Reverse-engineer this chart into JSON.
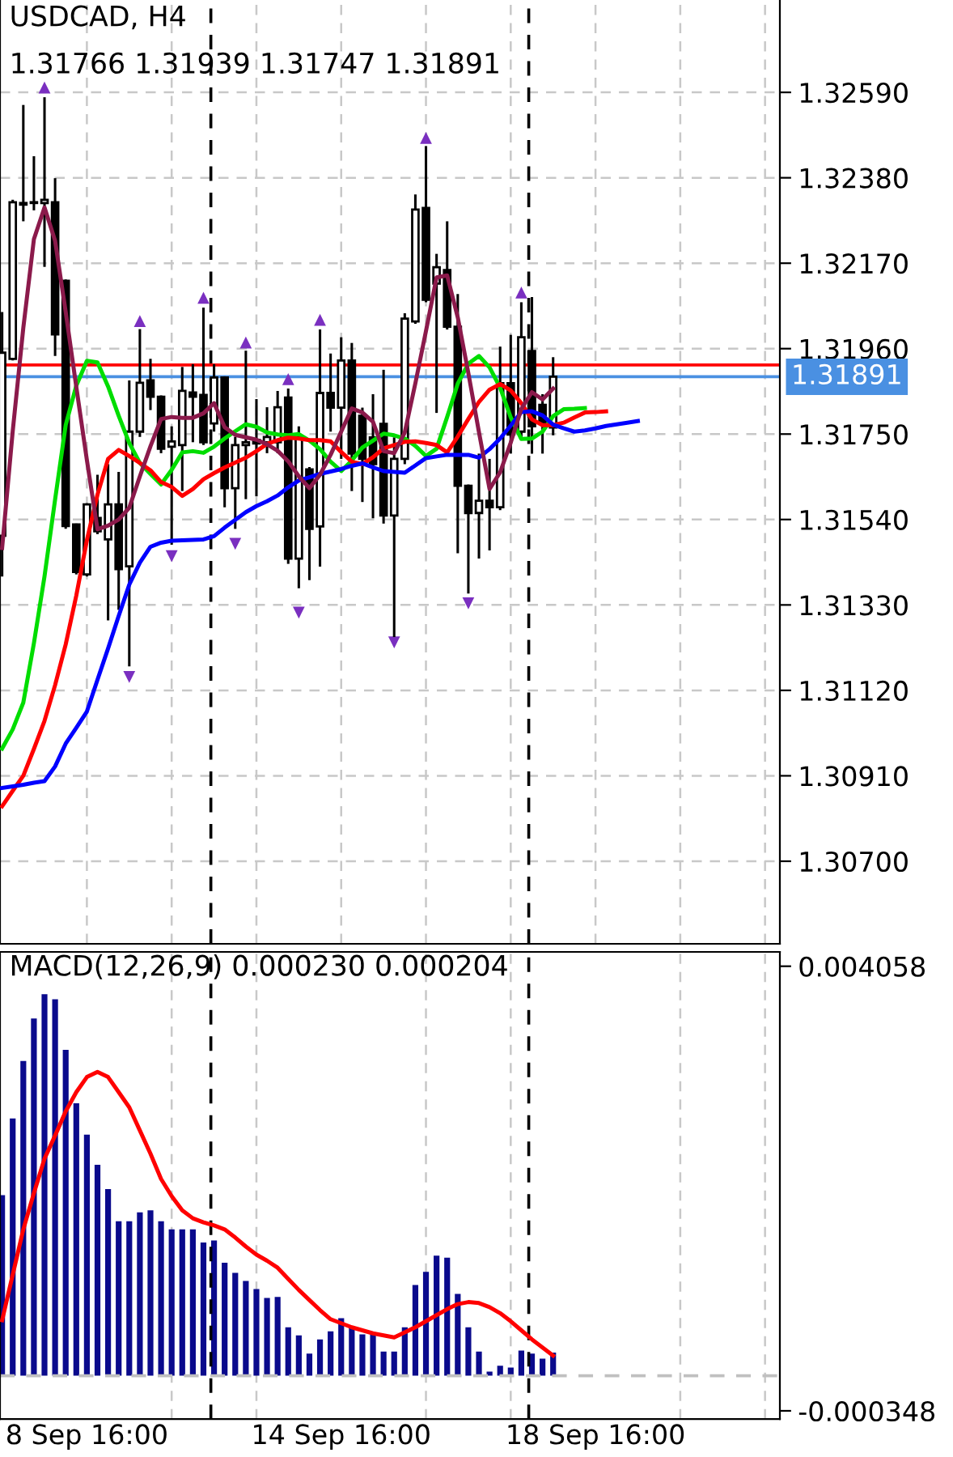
{
  "chart_data": [
    {
      "type": "candlestick",
      "title": "USDCAD, H4",
      "subtitle": "1.31766 1.31939 1.31747 1.31891",
      "categories": [
        null,
        null,
        null,
        null,
        null,
        null,
        null,
        null,
        null,
        null,
        null,
        null,
        null,
        null,
        null,
        null,
        null,
        null,
        null,
        null,
        null,
        null,
        null,
        null,
        null,
        null,
        null,
        null,
        null,
        null,
        null,
        null,
        null,
        null,
        null,
        null,
        null,
        null,
        null,
        null,
        null,
        null,
        null,
        null,
        null,
        null,
        null,
        null,
        null,
        null,
        null,
        null,
        null,
        null,
        null,
        null,
        null,
        null,
        null,
        null,
        null,
        null,
        null,
        null,
        null,
        null,
        null,
        null,
        null,
        null,
        null,
        null,
        null,
        null
      ],
      "ohlc": [
        [
          1.315,
          1.3205,
          1.314,
          1.3195
        ],
        [
          1.31935,
          1.32326,
          1.31931,
          1.3232
        ],
        [
          1.32318,
          1.32559,
          1.32273,
          1.32314
        ],
        [
          1.3232,
          1.32433,
          1.323,
          1.32318
        ],
        [
          1.32318,
          1.32578,
          1.32161,
          1.32326
        ],
        [
          1.3232,
          1.32379,
          1.31942,
          1.31995
        ],
        [
          1.32127,
          1.3213,
          1.31517,
          1.31524
        ],
        [
          1.31528,
          1.3153,
          1.31405,
          1.31411
        ],
        [
          1.31405,
          1.3158,
          1.314,
          1.31577
        ],
        [
          1.31544,
          1.3165,
          1.31504,
          1.31511
        ],
        [
          1.31491,
          1.31676,
          1.31292,
          1.31577
        ],
        [
          1.31577,
          1.31657,
          1.31318,
          1.31418
        ],
        [
          1.31425,
          1.31882,
          1.31179,
          1.31756
        ],
        [
          1.31756,
          1.32008,
          1.31743,
          1.31876
        ],
        [
          1.31882,
          1.31935,
          1.31809,
          1.31842
        ],
        [
          1.31842,
          1.31845,
          1.31703,
          1.31714
        ],
        [
          1.31719,
          1.31769,
          1.31478,
          1.31732
        ],
        [
          1.31723,
          1.31915,
          1.3161,
          1.31856
        ],
        [
          1.31852,
          1.31922,
          1.3173,
          1.31842
        ],
        [
          1.31846,
          1.32061,
          1.31723,
          1.3173
        ],
        [
          1.31776,
          1.31922,
          1.31756,
          1.31889
        ],
        [
          1.31889,
          1.31892,
          1.3157,
          1.31617
        ],
        [
          1.31617,
          1.31743,
          1.31517,
          1.31723
        ],
        [
          1.31723,
          1.31955,
          1.3159,
          1.3173
        ],
        [
          1.31736,
          1.31836,
          1.31597,
          1.31727
        ],
        [
          1.3173,
          1.31816,
          1.31703,
          1.31743
        ],
        [
          1.3173,
          1.31856,
          1.31703,
          1.31816
        ],
        [
          1.3184,
          1.31862,
          1.31431,
          1.31444
        ],
        [
          1.31444,
          1.31769,
          1.31371,
          1.31742
        ],
        [
          1.31663,
          1.31669,
          1.31391,
          1.31517
        ],
        [
          1.31523,
          1.32007,
          1.31424,
          1.31851
        ],
        [
          1.31851,
          1.31948,
          1.31756,
          1.31815
        ],
        [
          1.31815,
          1.31988,
          1.31689,
          1.31931
        ],
        [
          1.31931,
          1.31974,
          1.3161,
          1.31702
        ],
        [
          1.31795,
          1.31815,
          1.31583,
          1.31689
        ],
        [
          1.31742,
          1.31848,
          1.31543,
          1.31676
        ],
        [
          1.31775,
          1.31908,
          1.3153,
          1.3155
        ],
        [
          1.3155,
          1.31742,
          1.31251,
          1.31689
        ],
        [
          1.31689,
          1.32047,
          1.31676,
          1.32034
        ],
        [
          1.32027,
          1.32339,
          1.32021,
          1.32302
        ],
        [
          1.32306,
          1.32458,
          1.32074,
          1.3208
        ],
        [
          1.3212,
          1.32193,
          1.31802,
          1.3216
        ],
        [
          1.32153,
          1.32273,
          1.32007,
          1.32014
        ],
        [
          1.32014,
          1.32094,
          1.31457,
          1.31623
        ],
        [
          1.31623,
          1.31626,
          1.31358,
          1.31556
        ],
        [
          1.31556,
          1.31702,
          1.31444,
          1.31586
        ],
        [
          1.31586,
          1.31689,
          1.31464,
          1.3157
        ],
        [
          1.3157,
          1.31965,
          1.31563,
          1.31875
        ],
        [
          1.31875,
          1.31994,
          1.31702,
          1.31749
        ],
        [
          1.31756,
          1.32074,
          1.31742,
          1.31988
        ],
        [
          1.31954,
          1.32087,
          1.31702,
          1.31769
        ],
        [
          1.31822,
          1.31848,
          1.31702,
          1.31775
        ],
        [
          1.31766,
          1.31939,
          1.31747,
          1.31891
        ],
        null,
        null,
        null,
        null,
        null,
        null,
        null,
        null,
        null,
        null,
        null,
        null,
        null,
        null,
        null,
        null,
        null,
        null,
        null,
        null,
        null
      ],
      "series": [
        {
          "type": "line",
          "color": "#00dd00",
          "values": [
            1.30977,
            1.31024,
            1.3109,
            1.31236,
            1.314,
            1.31589,
            1.31772,
            1.31869,
            1.3193,
            1.31926,
            1.31867,
            1.31795,
            1.31728,
            1.31679,
            1.31652,
            1.31626,
            1.31662,
            1.31705,
            1.31708,
            1.31704,
            1.31719,
            1.31739,
            1.31757,
            1.31774,
            1.31768,
            1.31754,
            1.31749,
            1.31747,
            1.3175,
            1.31734,
            1.31713,
            1.31682,
            1.31659,
            1.31685,
            1.31717,
            1.31734,
            1.31751,
            1.31747,
            1.31739,
            1.31721,
            1.31696,
            1.31714,
            1.31792,
            1.31874,
            1.31923,
            1.31942,
            1.31914,
            1.31864,
            1.31791,
            1.31738,
            1.31739,
            1.31756,
            1.31794,
            1.31811,
            1.31812,
            1.31814,
            null,
            null,
            null,
            null,
            null,
            null,
            null,
            null,
            null,
            null,
            null,
            null,
            null,
            null,
            null,
            null,
            null,
            null
          ]
        },
        {
          "type": "line",
          "color": "#ff0000",
          "values": [
            1.30835,
            1.30873,
            1.3091,
            1.30976,
            1.31045,
            1.31133,
            1.31233,
            1.31353,
            1.31489,
            1.31601,
            1.31689,
            1.31711,
            1.31696,
            1.31679,
            1.31661,
            1.31632,
            1.3162,
            1.31598,
            1.31615,
            1.31639,
            1.31654,
            1.31668,
            1.3168,
            1.31692,
            1.31708,
            1.31726,
            1.31735,
            1.31741,
            1.31739,
            1.31735,
            1.31735,
            1.31732,
            1.31706,
            1.31682,
            1.31676,
            1.31693,
            1.31715,
            1.31723,
            1.31731,
            1.31732,
            1.31728,
            1.31723,
            1.31705,
            1.31744,
            1.31787,
            1.31829,
            1.31859,
            1.31873,
            1.31857,
            1.31826,
            1.31786,
            1.31772,
            1.31772,
            1.31778,
            1.31791,
            1.31803,
            1.31804,
            1.31806,
            null,
            null,
            null,
            null,
            null,
            null,
            null,
            null,
            null,
            null,
            null,
            null,
            null,
            null,
            null,
            null
          ]
        },
        {
          "type": "line",
          "color": "#0000ff",
          "values": [
            1.3088,
            1.30884,
            1.30888,
            1.30893,
            1.30897,
            1.30933,
            1.30989,
            1.31028,
            1.31068,
            1.31146,
            1.31223,
            1.31303,
            1.3138,
            1.31434,
            1.31473,
            1.31483,
            1.31488,
            1.31489,
            1.3149,
            1.31491,
            1.31499,
            1.3152,
            1.31539,
            1.31558,
            1.31573,
            1.31585,
            1.31599,
            1.31619,
            1.31636,
            1.31644,
            1.31652,
            1.31658,
            1.31664,
            1.31672,
            1.31678,
            1.31668,
            1.31659,
            1.31657,
            1.31655,
            1.31673,
            1.31691,
            1.31695,
            1.31699,
            1.31699,
            1.31699,
            1.31692,
            1.31713,
            1.31739,
            1.31771,
            1.31804,
            1.31806,
            1.31796,
            1.31773,
            1.31764,
            1.31756,
            1.31759,
            1.31764,
            1.3177,
            1.31774,
            1.31778,
            1.31782,
            null,
            null,
            null,
            null,
            null,
            null,
            null,
            null,
            null,
            null,
            null,
            null,
            null
          ]
        },
        {
          "type": "line",
          "color": "#8b1a4b",
          "values": [
            1.3147,
            1.31757,
            1.32011,
            1.32229,
            1.32307,
            1.32225,
            1.3205,
            1.31866,
            1.31686,
            1.31516,
            1.31525,
            1.3154,
            1.31569,
            1.31646,
            1.3172,
            1.31787,
            1.31792,
            1.3179,
            1.3179,
            1.31801,
            1.31826,
            1.31767,
            1.31748,
            1.31742,
            1.31736,
            1.31725,
            1.31709,
            1.31683,
            1.31646,
            1.31617,
            1.3165,
            1.31699,
            1.31756,
            1.31813,
            1.31803,
            1.3178,
            1.31708,
            1.31703,
            1.31754,
            1.31875,
            1.32003,
            1.32135,
            1.3214,
            1.32037,
            1.319,
            1.31755,
            1.31615,
            1.31656,
            1.31729,
            1.31812,
            1.31853,
            1.31835,
            1.31862,
            null,
            null,
            null,
            null,
            null,
            null,
            null,
            null,
            null,
            null,
            null,
            null,
            null,
            null,
            null,
            null,
            null,
            null,
            null,
            null,
            null
          ]
        },
        {
          "type": "scatter",
          "marker": "triangle",
          "color": "#7a2fc0",
          "values": [
            null,
            null,
            null,
            null,
            1.32602,
            null,
            null,
            null,
            null,
            null,
            null,
            null,
            null,
            1.32028,
            null,
            null,
            null,
            null,
            null,
            1.32085,
            null,
            null,
            null,
            1.31975,
            null,
            null,
            null,
            1.31885,
            null,
            null,
            1.32031,
            null,
            null,
            null,
            null,
            null,
            null,
            null,
            null,
            null,
            1.32478,
            null,
            null,
            null,
            null,
            null,
            null,
            null,
            null,
            1.32098,
            null,
            null,
            null,
            null,
            null,
            null,
            null,
            null,
            null,
            null,
            null,
            null,
            null,
            null,
            null,
            null,
            null,
            null,
            null,
            null,
            null,
            null,
            null,
            null
          ]
        },
        {
          "type": "scatter",
          "marker": "triangle_down",
          "color": "#7a2fc0",
          "values": [
            null,
            null,
            null,
            null,
            null,
            null,
            null,
            null,
            null,
            null,
            null,
            null,
            1.31153,
            null,
            null,
            null,
            1.3145,
            null,
            null,
            null,
            null,
            null,
            1.3148,
            null,
            null,
            null,
            null,
            null,
            1.31311,
            null,
            null,
            null,
            null,
            null,
            null,
            null,
            null,
            1.31238,
            null,
            null,
            null,
            null,
            null,
            null,
            1.31334,
            null,
            null,
            null,
            null,
            null,
            null,
            null,
            null,
            null,
            null,
            null,
            null,
            null,
            null,
            null,
            null,
            null,
            null,
            null,
            null,
            null,
            null,
            null,
            null,
            null,
            null,
            null,
            null,
            null
          ]
        }
      ],
      "ylim": [
        1.30497,
        1.32817
      ],
      "yticks": [
        {
          "value": 1.3259,
          "label": "1.32590"
        },
        {
          "value": 1.3238,
          "label": "1.32380"
        },
        {
          "value": 1.3217,
          "label": "1.32170"
        },
        {
          "value": 1.3196,
          "label": "1.31960"
        },
        {
          "value": 1.3175,
          "label": "1.31750"
        },
        {
          "value": 1.3154,
          "label": "1.31540"
        },
        {
          "value": 1.3133,
          "label": "1.31330"
        },
        {
          "value": 1.3112,
          "label": "1.31120"
        },
        {
          "value": 1.3091,
          "label": "1.30910"
        },
        {
          "value": 1.307,
          "label": "1.30700"
        }
      ],
      "tick_labels": "y",
      "grid": true,
      "ref_lines": [
        {
          "axis": "y",
          "value": 1.3192,
          "color": "#ff0000",
          "line_style": "solid"
        },
        {
          "axis": "y",
          "value": 1.31891,
          "label": "1.31891",
          "color": "#4a90e2",
          "line_style": "solid"
        }
      ]
    },
    {
      "type": "bar",
      "title": "MACD(12,26,9) 0.000230 0.000204",
      "color": "#0a0a8c",
      "categories": [
        null,
        null,
        null,
        null,
        null,
        null,
        null,
        null,
        "8 Sep 16:00",
        null,
        null,
        null,
        null,
        null,
        null,
        null,
        null,
        null,
        null,
        null,
        null,
        null,
        null,
        null,
        null,
        null,
        null,
        null,
        null,
        null,
        null,
        null,
        "14 Sep 16:00",
        null,
        null,
        null,
        null,
        null,
        null,
        null,
        null,
        null,
        null,
        null,
        null,
        null,
        null,
        null,
        null,
        null,
        null,
        null,
        null,
        null,
        null,
        null,
        "18 Sep 16:00",
        null,
        null,
        null,
        null,
        null,
        null,
        null,
        null,
        null,
        null,
        null,
        null,
        null,
        null,
        null,
        null,
        null
      ],
      "values": [
        0.00179,
        0.00255,
        0.00312,
        0.00354,
        0.00378,
        0.00373,
        0.00323,
        0.0027,
        0.00239,
        0.00209,
        0.00185,
        0.00153,
        0.00153,
        0.00162,
        0.00164,
        0.00153,
        0.00145,
        0.00145,
        0.00145,
        0.00132,
        0.00134,
        0.00112,
        0.00102,
        0.00094,
        0.00086,
        0.00077,
        0.00078,
        0.00048,
        0.0004,
        0.00022,
        0.00036,
        0.00044,
        0.00057,
        0.00048,
        0.00041,
        0.00041,
        0.00024,
        0.00024,
        0.00048,
        0.0009,
        0.00103,
        0.00119,
        0.00117,
        0.00081,
        0.00048,
        0.00024,
        4e-05,
        0.0001,
        8e-05,
        0.00025,
        0.00022,
        0.00017,
        0.00023,
        null,
        null,
        null,
        null,
        null,
        null,
        null,
        null,
        null,
        null,
        null,
        null,
        null,
        null,
        null,
        null,
        null,
        null,
        null,
        null,
        null
      ],
      "series": [
        {
          "type": "line",
          "color": "#ff0000",
          "values": [
            0.00055,
            0.001,
            0.00145,
            0.00181,
            0.00215,
            0.00238,
            0.00262,
            0.00281,
            0.00296,
            0.00301,
            0.00296,
            0.00281,
            0.00266,
            0.00243,
            0.0022,
            0.00195,
            0.00178,
            0.00164,
            0.00156,
            0.00152,
            0.00149,
            0.00145,
            0.00137,
            0.00128,
            0.0012,
            0.00114,
            0.00107,
            0.00096,
            0.00085,
            0.00075,
            0.00065,
            0.00056,
            0.00052,
            0.00048,
            0.00045,
            0.00042,
            0.0004,
            0.00038,
            0.00043,
            0.00048,
            0.00054,
            0.0006,
            0.00066,
            0.00071,
            0.00073,
            0.00072,
            0.00068,
            0.00062,
            0.00054,
            0.00045,
            0.00036,
            0.00028,
            0.0002,
            null,
            null,
            null,
            null,
            null,
            null,
            null,
            null,
            null,
            null,
            null,
            null,
            null,
            null,
            null,
            null,
            null,
            null,
            null,
            null,
            null
          ]
        }
      ],
      "ylim": [
        -0.00043,
        0.0042
      ],
      "yticks": [
        {
          "value": 0.004058,
          "label": "0.004058"
        },
        {
          "value": -0.000348,
          "label": "-0.000348"
        }
      ],
      "grid": "x",
      "ref_lines": [
        {
          "axis": "y",
          "value": 0,
          "color": "#c0c0c0",
          "line_style": "dashed"
        }
      ]
    }
  ]
}
